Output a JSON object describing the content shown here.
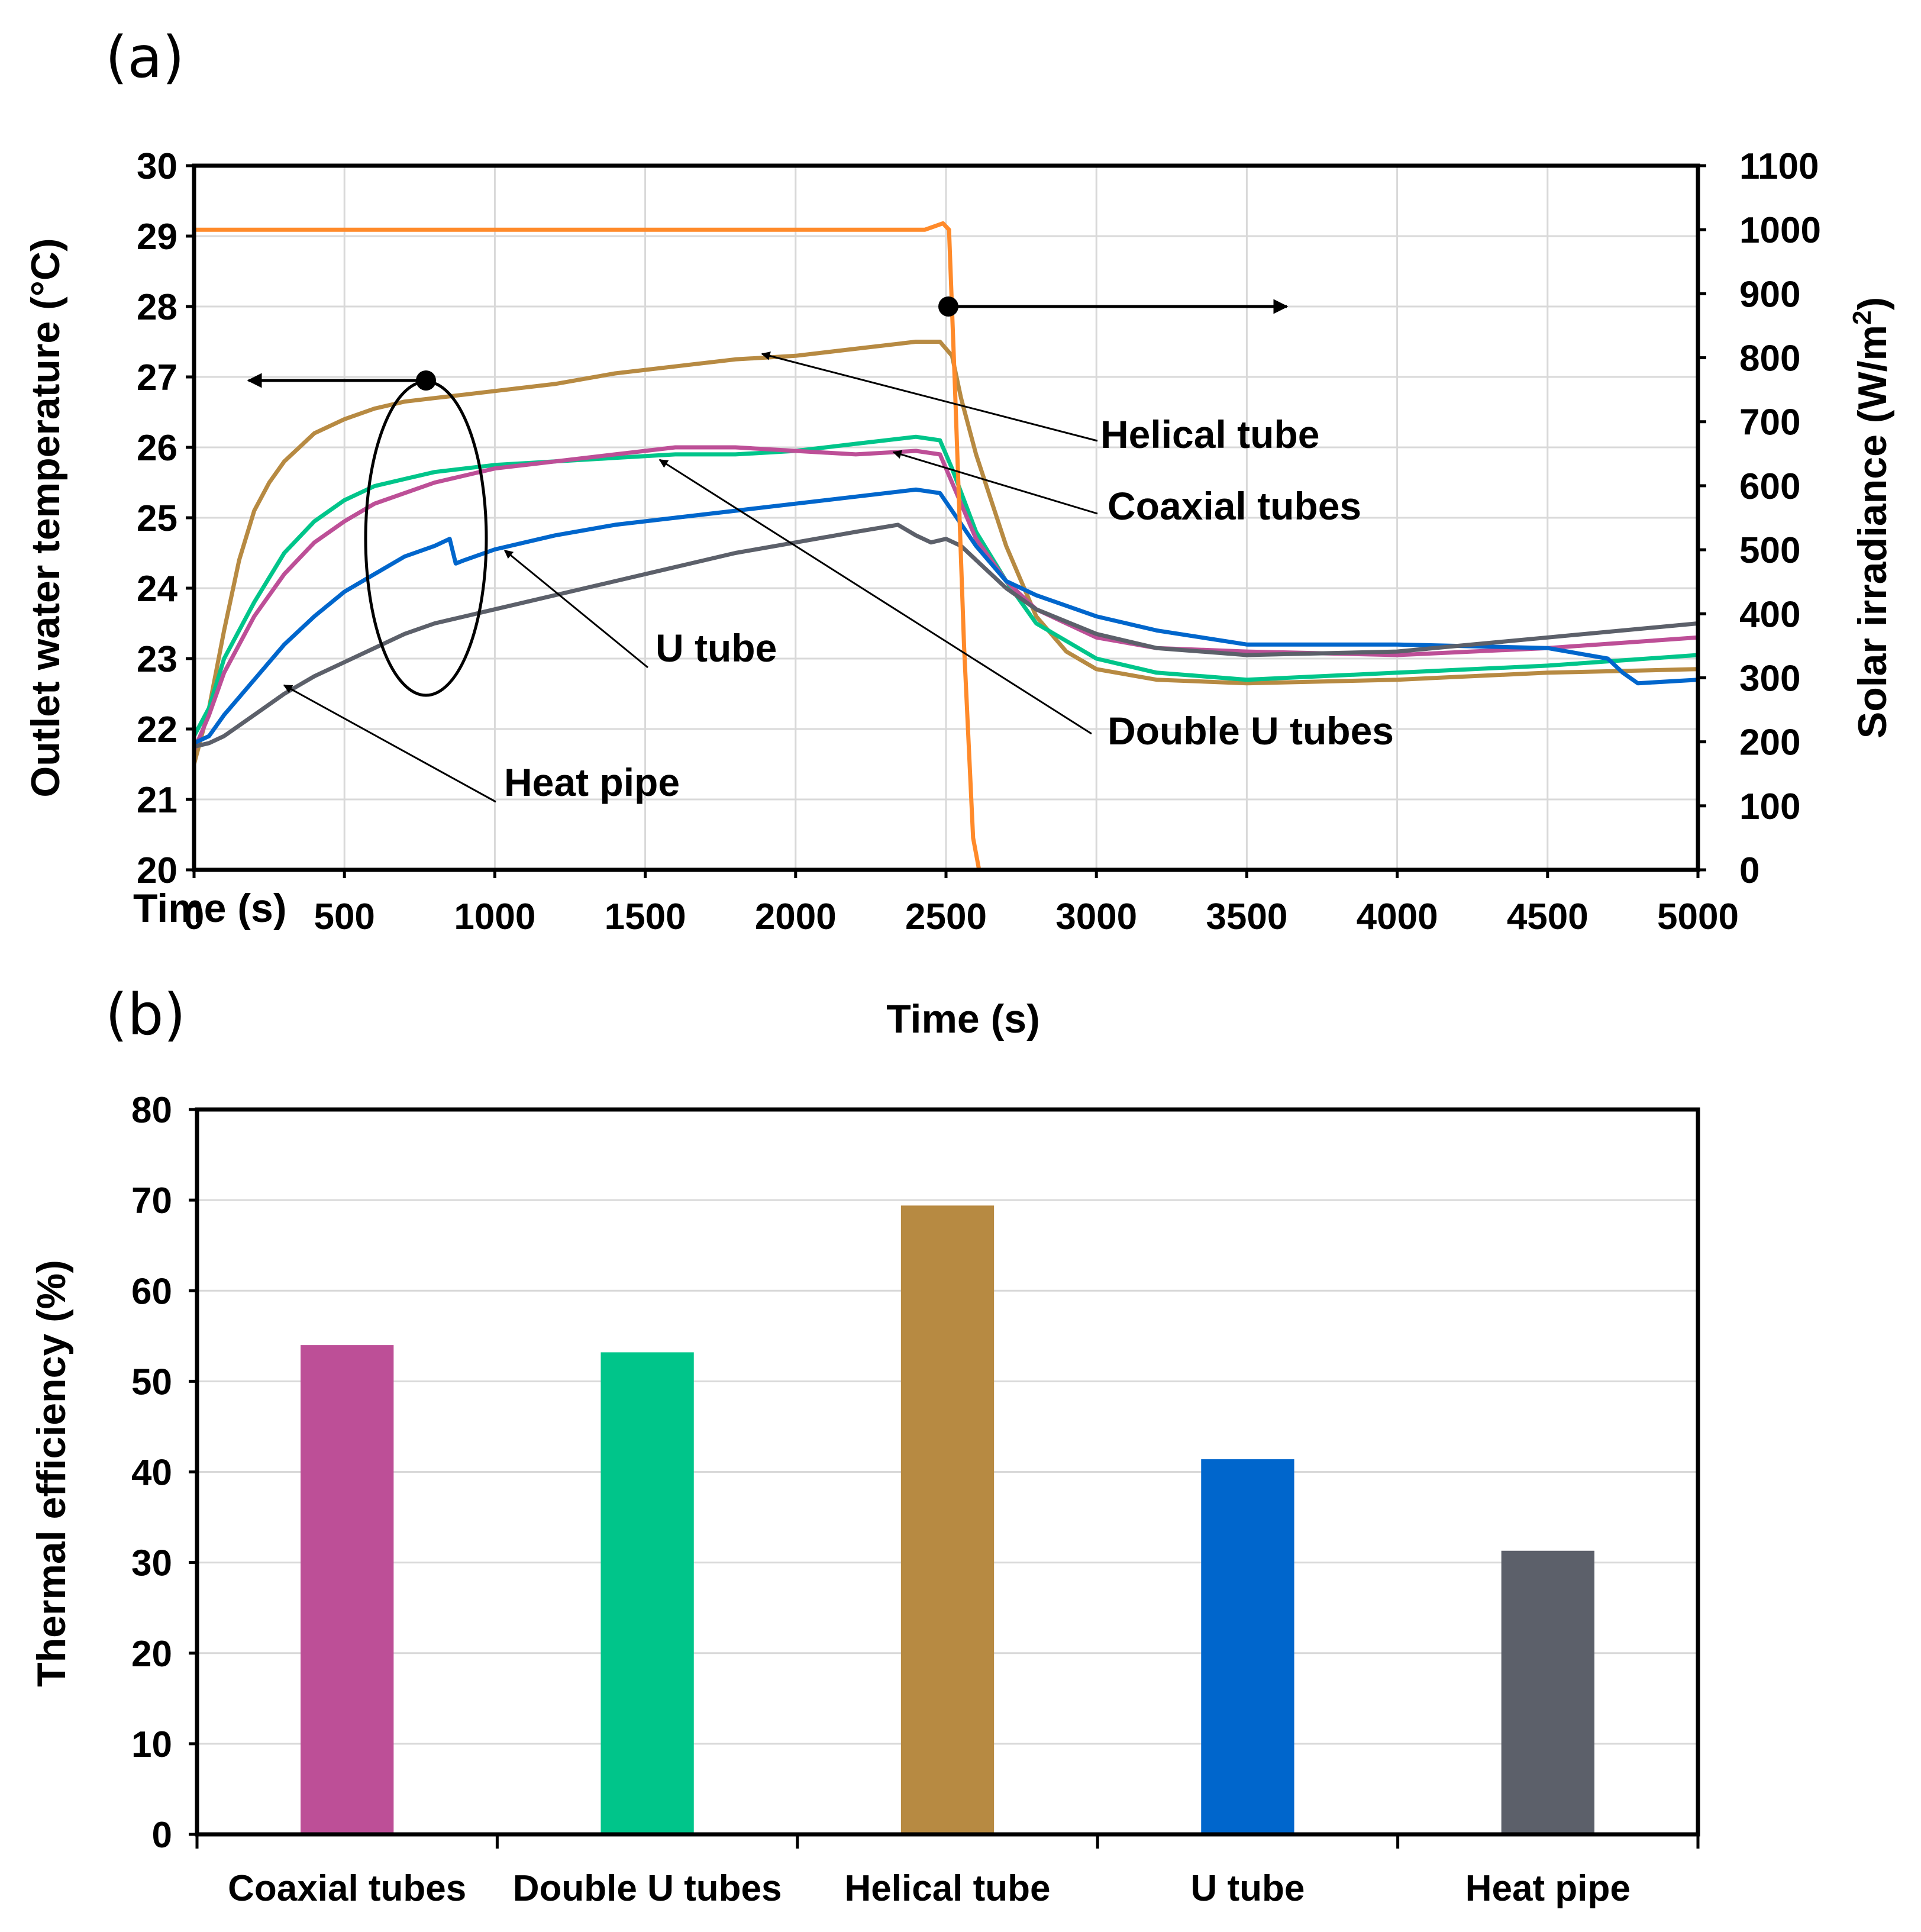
{
  "panels": {
    "a": "(a)",
    "b": "(b)"
  },
  "colors": {
    "coaxial": "#bd4f97",
    "double_u": "#00c58a",
    "helical": "#b78a42",
    "u_tube": "#0066cc",
    "heat_pipe": "#5c606a",
    "irradiance": "#ff8a2a"
  },
  "chart_data": [
    {
      "type": "line",
      "panel": "(a)",
      "xlabel": "Time (s)",
      "xlabel_inner": "Time (s)",
      "ylabel": "Outlet water temperature (°C)",
      "y2label": "Solar irradiance (W/m²)",
      "y2label_main": "Solar irradiance (W/m",
      "y2label_sup": "2",
      "y2label_close": ")",
      "xlim": [
        0,
        5000
      ],
      "ylim": [
        20,
        30
      ],
      "y2lim": [
        0,
        1100
      ],
      "xticks": [
        "0",
        "500",
        "1000",
        "1500",
        "2000",
        "2500",
        "3000",
        "3500",
        "4000",
        "4500",
        "5000"
      ],
      "yticks": [
        "20",
        "21",
        "22",
        "23",
        "24",
        "25",
        "26",
        "27",
        "28",
        "29",
        "30"
      ],
      "y2ticks": [
        "0",
        "100",
        "200",
        "300",
        "400",
        "500",
        "600",
        "700",
        "800",
        "900",
        "1000",
        "1100"
      ],
      "grid": true,
      "series": [
        {
          "name": "Helical tube",
          "color_key": "helical",
          "axis": "left",
          "x": [
            0,
            50,
            100,
            150,
            200,
            250,
            300,
            400,
            500,
            600,
            700,
            800,
            900,
            1000,
            1200,
            1400,
            1600,
            1800,
            2000,
            2200,
            2400,
            2480,
            2520,
            2550,
            2600,
            2700,
            2800,
            2900,
            3000,
            3200,
            3500,
            4000,
            4500,
            5000
          ],
          "y": [
            21.5,
            22.3,
            23.4,
            24.4,
            25.1,
            25.5,
            25.8,
            26.2,
            26.4,
            26.55,
            26.65,
            26.7,
            26.75,
            26.8,
            26.9,
            27.05,
            27.15,
            27.25,
            27.3,
            27.4,
            27.5,
            27.5,
            27.3,
            26.7,
            25.9,
            24.6,
            23.6,
            23.1,
            22.85,
            22.7,
            22.65,
            22.7,
            22.8,
            22.85
          ]
        },
        {
          "name": "Double U tubes",
          "color_key": "double_u",
          "axis": "left",
          "x": [
            0,
            50,
            100,
            200,
            300,
            400,
            500,
            600,
            700,
            800,
            900,
            1000,
            1200,
            1400,
            1600,
            1800,
            2000,
            2200,
            2400,
            2480,
            2520,
            2600,
            2700,
            2800,
            3000,
            3200,
            3500,
            4000,
            4500,
            5000
          ],
          "y": [
            21.9,
            22.3,
            23.0,
            23.8,
            24.5,
            24.95,
            25.25,
            25.45,
            25.55,
            25.65,
            25.7,
            25.75,
            25.8,
            25.85,
            25.9,
            25.9,
            25.95,
            26.05,
            26.15,
            26.1,
            25.7,
            24.8,
            24.1,
            23.5,
            23.0,
            22.8,
            22.7,
            22.8,
            22.9,
            23.05
          ]
        },
        {
          "name": "Coaxial tubes",
          "color_key": "coaxial",
          "axis": "left",
          "x": [
            0,
            50,
            100,
            200,
            300,
            400,
            500,
            600,
            700,
            800,
            900,
            1000,
            1200,
            1400,
            1600,
            1800,
            2000,
            2200,
            2400,
            2480,
            2520,
            2600,
            2700,
            2800,
            3000,
            3200,
            3500,
            4000,
            4500,
            5000
          ],
          "y": [
            21.7,
            22.2,
            22.8,
            23.6,
            24.2,
            24.65,
            24.95,
            25.2,
            25.35,
            25.5,
            25.6,
            25.7,
            25.8,
            25.9,
            26.0,
            26.0,
            25.95,
            25.9,
            25.95,
            25.9,
            25.5,
            24.7,
            24.1,
            23.7,
            23.3,
            23.15,
            23.1,
            23.05,
            23.15,
            23.3
          ]
        },
        {
          "name": "U tube",
          "color_key": "u_tube",
          "axis": "left",
          "x": [
            0,
            50,
            100,
            200,
            300,
            400,
            500,
            600,
            700,
            800,
            850,
            870,
            900,
            1000,
            1200,
            1400,
            1600,
            1800,
            2000,
            2200,
            2400,
            2480,
            2520,
            2600,
            2700,
            2800,
            3000,
            3200,
            3500,
            4000,
            4500,
            4700,
            4750,
            4800,
            5000
          ],
          "y": [
            21.8,
            21.9,
            22.2,
            22.7,
            23.2,
            23.6,
            23.95,
            24.2,
            24.45,
            24.6,
            24.7,
            24.35,
            24.4,
            24.55,
            24.75,
            24.9,
            25.0,
            25.1,
            25.2,
            25.3,
            25.4,
            25.35,
            25.1,
            24.6,
            24.1,
            23.9,
            23.6,
            23.4,
            23.2,
            23.2,
            23.15,
            23.0,
            22.8,
            22.65,
            22.7
          ]
        },
        {
          "name": "Heat pipe",
          "color_key": "heat_pipe",
          "axis": "left",
          "x": [
            0,
            50,
            100,
            200,
            300,
            400,
            500,
            600,
            700,
            800,
            900,
            1000,
            1200,
            1400,
            1600,
            1800,
            2000,
            2200,
            2340,
            2400,
            2450,
            2500,
            2550,
            2600,
            2700,
            2800,
            3000,
            3200,
            3500,
            4000,
            4500,
            5000
          ],
          "y": [
            21.75,
            21.8,
            21.9,
            22.2,
            22.5,
            22.75,
            22.95,
            23.15,
            23.35,
            23.5,
            23.6,
            23.7,
            23.9,
            24.1,
            24.3,
            24.5,
            24.65,
            24.8,
            24.9,
            24.75,
            24.65,
            24.7,
            24.6,
            24.4,
            24.0,
            23.7,
            23.35,
            23.15,
            23.05,
            23.1,
            23.3,
            23.5
          ]
        },
        {
          "name": "Solar irradiance",
          "color_key": "irradiance",
          "axis": "right",
          "x": [
            0,
            2400,
            2430,
            2460,
            2490,
            2510,
            2530,
            2560,
            2590,
            2610,
            2650,
            2700,
            5000
          ],
          "y": [
            1000,
            1000,
            1000,
            1005,
            1010,
            1000,
            750,
            350,
            50,
            0,
            0,
            0,
            0
          ]
        }
      ],
      "annotations": [
        "Helical tube",
        "Coaxial tubes",
        "U tube",
        "Double U tubes",
        "Heat pipe"
      ]
    },
    {
      "type": "bar",
      "panel": "(b)",
      "ylabel": "Thermal efficiency (%)",
      "ylim": [
        0,
        80
      ],
      "yticks": [
        "0",
        "10",
        "20",
        "30",
        "40",
        "50",
        "60",
        "70",
        "80"
      ],
      "grid": true,
      "categories": [
        "Coaxial tubes",
        "Double U tubes",
        "Helical tube",
        "U tube",
        "Heat pipe"
      ],
      "values": [
        54,
        53.2,
        69.4,
        41.4,
        31.3
      ],
      "color_keys": [
        "coaxial",
        "double_u",
        "helical",
        "u_tube",
        "heat_pipe"
      ]
    }
  ]
}
